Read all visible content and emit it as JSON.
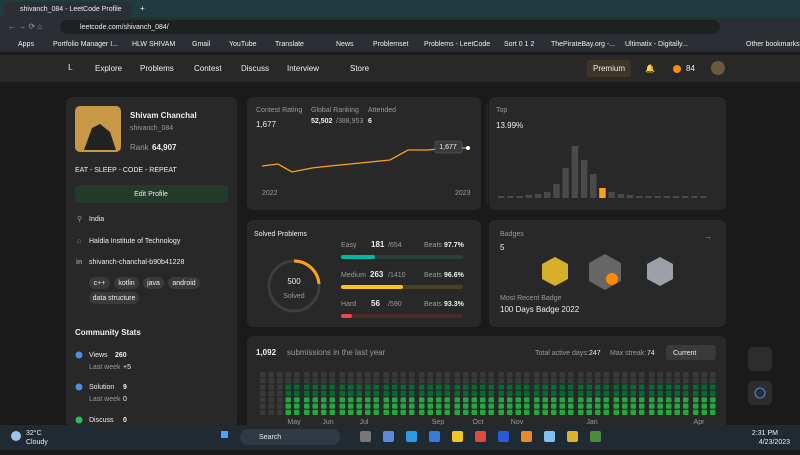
{
  "browser": {
    "tab_title": "shivanch_084 - LeetCode Profile",
    "url": "leetcode.com/shivanch_084/",
    "bookmarks": [
      "Apps",
      "Portfolio Manager I...",
      "HLW SHIVAM",
      "Gmail",
      "YouTube",
      "Translate",
      "News",
      "Problemset",
      "Problems - LeetCode",
      "Sort 0 1 2",
      "ThePirateBay.org -...",
      "Ultimatix - Digitally...",
      "Other bookmarks"
    ]
  },
  "nav": {
    "items": [
      "Explore",
      "Problems",
      "Contest",
      "Discuss",
      "Interview",
      "Store"
    ],
    "premium": "Premium",
    "streak": "84"
  },
  "profile": {
    "name": "Shivam Chanchal",
    "username": "shivanch_084",
    "rank_label": "Rank",
    "rank": "64,907",
    "bio": "EAT - SLEEP - CODE - REPEAT",
    "edit": "Edit Profile",
    "location": "India",
    "school": "Haldia Institute of Technology",
    "linkedin": "shivanch-chanchal-b90b41228",
    "skills": [
      "c++",
      "kotlin",
      "java",
      "android",
      "data structure"
    ]
  },
  "community": {
    "title": "Community Stats",
    "stats": [
      {
        "label": "Views",
        "value": "260",
        "week": "Last week",
        "delta": "+5"
      },
      {
        "label": "Solution",
        "value": "9",
        "week": "Last week",
        "delta": "0"
      },
      {
        "label": "Discuss",
        "value": "0"
      }
    ]
  },
  "contest": {
    "rating_label": "Contest Rating",
    "rating": "1,677",
    "ranking_label": "Global Ranking",
    "ranking": "52,502",
    "ranking_total": "/388,953",
    "attended_label": "Attended",
    "attended": "6",
    "tooltip": "1,677",
    "start": "2022",
    "end": "2023",
    "top_label": "Top",
    "top": "13.99%"
  },
  "solved": {
    "title": "Solved Problems",
    "total": "500",
    "total_label": "Solved",
    "levels": [
      {
        "name": "Easy",
        "solved": "181",
        "total": "/654",
        "beats_label": "Beats",
        "beats": "97.7%"
      },
      {
        "name": "Medium",
        "solved": "263",
        "total": "/1410",
        "beats_label": "Beats",
        "beats": "96.6%"
      },
      {
        "name": "Hard",
        "solved": "56",
        "total": "/590",
        "beats_label": "Beats",
        "beats": "93.3%"
      }
    ]
  },
  "badges": {
    "title": "Badges",
    "count": "5",
    "recent_label": "Most Recent Badge",
    "recent": "100 Days Badge 2022"
  },
  "submissions": {
    "count": "1,092",
    "text": "submissions in the last year",
    "active_label": "Total active days:",
    "active": "247",
    "streak_label": "Max streak:",
    "streak": "74",
    "period": "Current",
    "months": [
      "May",
      "Jun",
      "Jul",
      "Sep",
      "Oct",
      "Nov",
      "Jan",
      "Apr"
    ]
  },
  "taskbar": {
    "temp": "32°C",
    "weather": "Cloudy",
    "search": "Search",
    "time": "2:31 PM",
    "date": "4/23/2023"
  }
}
